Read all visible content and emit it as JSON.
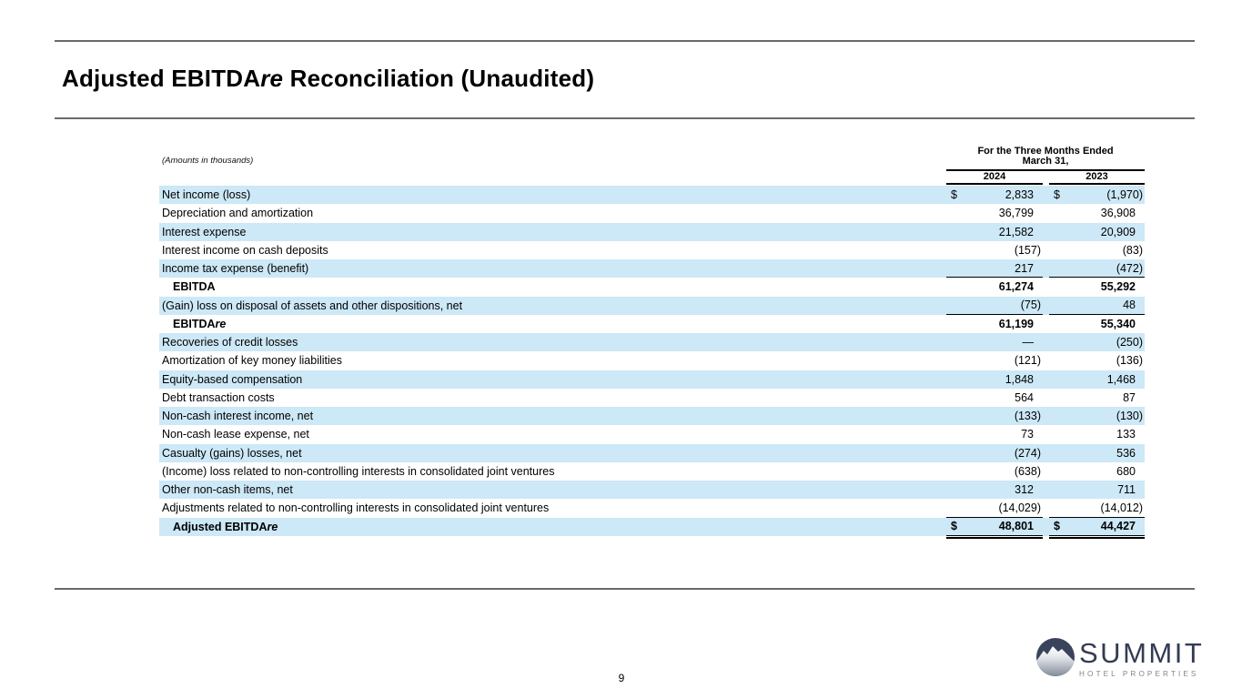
{
  "header": {
    "title_prefix": "Adjusted EBITDA",
    "title_italic": "re",
    "title_suffix": " Reconciliation (Unaudited)"
  },
  "table": {
    "note": "(Amounts in thousands)",
    "period_header_line1": "For the Three Months Ended",
    "period_header_line2": "March 31,",
    "columns": [
      "2024",
      "2023"
    ],
    "currency_symbol": "$",
    "rows": [
      {
        "label": "Net income (loss)",
        "values": [
          "2,833",
          "(1,970)"
        ],
        "dollar": true
      },
      {
        "label": "Depreciation and amortization",
        "values": [
          "36,799",
          "36,908"
        ]
      },
      {
        "label": "Interest expense",
        "values": [
          "21,582",
          "20,909"
        ]
      },
      {
        "label": "Interest income on cash deposits",
        "values": [
          "(157)",
          "(83)"
        ]
      },
      {
        "label": "Income tax expense (benefit)",
        "values": [
          "217",
          "(472)"
        ],
        "rule_below": true
      },
      {
        "label": "EBITDA",
        "values": [
          "61,274",
          "55,292"
        ],
        "bold": true,
        "indent": true
      },
      {
        "label": "(Gain) loss on disposal of assets and other dispositions, net",
        "values": [
          "(75)",
          "48"
        ],
        "rule_below": true
      },
      {
        "label": "EBITDA",
        "label_italic_suffix": "re",
        "values": [
          "61,199",
          "55,340"
        ],
        "bold": true,
        "indent": true
      },
      {
        "label": "Recoveries of credit losses",
        "values": [
          "—",
          "(250)"
        ]
      },
      {
        "label": "Amortization of key money liabilities",
        "values": [
          "(121)",
          "(136)"
        ]
      },
      {
        "label": "Equity-based compensation",
        "values": [
          "1,848",
          "1,468"
        ]
      },
      {
        "label": "Debt transaction costs",
        "values": [
          "564",
          "87"
        ]
      },
      {
        "label": "Non-cash interest income, net",
        "values": [
          "(133)",
          "(130)"
        ]
      },
      {
        "label": "Non-cash lease expense, net",
        "values": [
          "73",
          "133"
        ]
      },
      {
        "label": "Casualty (gains) losses, net",
        "values": [
          "(274)",
          "536"
        ]
      },
      {
        "label": "(Income) loss related to non-controlling interests in consolidated joint ventures",
        "values": [
          "(638)",
          "680"
        ]
      },
      {
        "label": "Other non-cash items, net",
        "values": [
          "312",
          "711"
        ]
      },
      {
        "label": "Adjustments related to non-controlling interests in consolidated joint ventures",
        "values": [
          "(14,029)",
          "(14,012)"
        ],
        "rule_below": true
      },
      {
        "label": "Adjusted EBITDA",
        "label_italic_suffix": "re",
        "values": [
          "48,801",
          "44,427"
        ],
        "bold": true,
        "indent": true,
        "dollar": true,
        "double_rule_below": true
      }
    ]
  },
  "footer": {
    "page_number": "9"
  },
  "logo": {
    "name": "SUMMIT",
    "subtitle": "HOTEL PROPERTIES"
  },
  "colors": {
    "row_highlight": "#cde8f6",
    "rule_gray": "#6a6a6a",
    "logo_navy": "#39445c",
    "logo_name_color": "#333c52",
    "logo_subtitle_gray": "#80858f"
  }
}
